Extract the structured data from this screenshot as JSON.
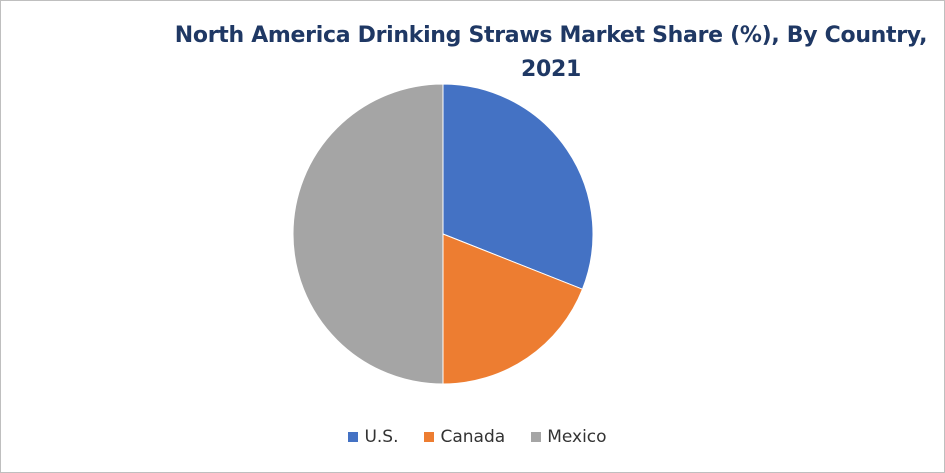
{
  "chart_data": {
    "type": "pie",
    "title": "North America Drinking Straws Market Share (%), By Country, 2021",
    "categories": [
      "U.S.",
      "Canada",
      "Mexico"
    ],
    "values": [
      31,
      19,
      50
    ],
    "colors": [
      "#4472c4",
      "#ed7d31",
      "#a5a5a5"
    ],
    "legend": "bottom",
    "start_angle_deg": 0,
    "direction": "clockwise"
  }
}
